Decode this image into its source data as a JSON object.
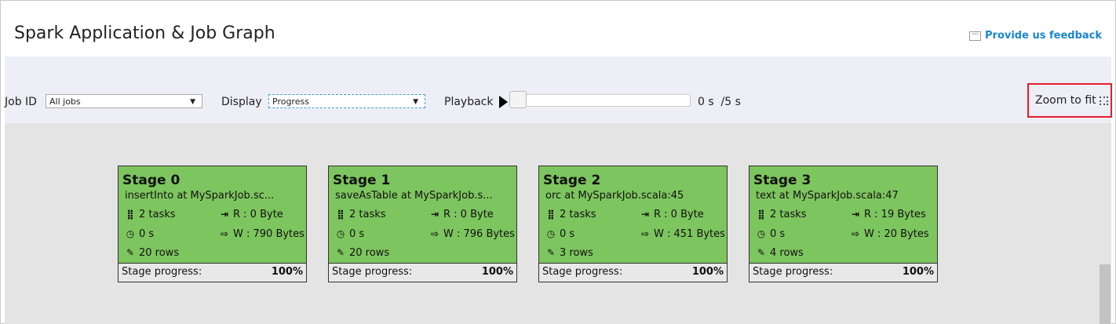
{
  "header": {
    "title": "Spark Application & Job Graph",
    "feedback": "Provide us feedback"
  },
  "toolbar": {
    "job_id_label": "Job ID",
    "job_id_value": "All jobs",
    "display_label": "Display",
    "display_value": "Progress",
    "playback_label": "Playback",
    "playback_time": "0 s  /5 s",
    "playback_progress": 0,
    "zoom_to_fit": "Zoom to fit"
  },
  "stages": [
    {
      "title": "Stage 0",
      "desc": "insertInto at MySparkJob.sc...",
      "tasks": "2 tasks",
      "read": "R : 0 Byte",
      "time": "0 s",
      "write": "W : 790 Bytes",
      "rows": "20 rows",
      "progress_label": "Stage progress:",
      "progress": "100%"
    },
    {
      "title": "Stage 1",
      "desc": "saveAsTable at MySparkJob.s...",
      "tasks": "2 tasks",
      "read": "R : 0 Byte",
      "time": "0 s",
      "write": "W : 796 Bytes",
      "rows": "20 rows",
      "progress_label": "Stage progress:",
      "progress": "100%"
    },
    {
      "title": "Stage 2",
      "desc": "orc at MySparkJob.scala:45",
      "tasks": "2 tasks",
      "read": "R : 0 Byte",
      "time": "0 s",
      "write": "W : 451 Bytes",
      "rows": "3 rows",
      "progress_label": "Stage progress:",
      "progress": "100%"
    },
    {
      "title": "Stage 3",
      "desc": "text at MySparkJob.scala:47",
      "tasks": "2 tasks",
      "read": "R : 19 Bytes",
      "time": "0 s",
      "write": "W : 20 Bytes",
      "rows": "4 rows",
      "progress_label": "Stage progress:",
      "progress": "100%"
    }
  ],
  "colors": {
    "stage_complete": "#7dc55e",
    "link": "#1a86d0",
    "highlight": "#e2202a"
  }
}
